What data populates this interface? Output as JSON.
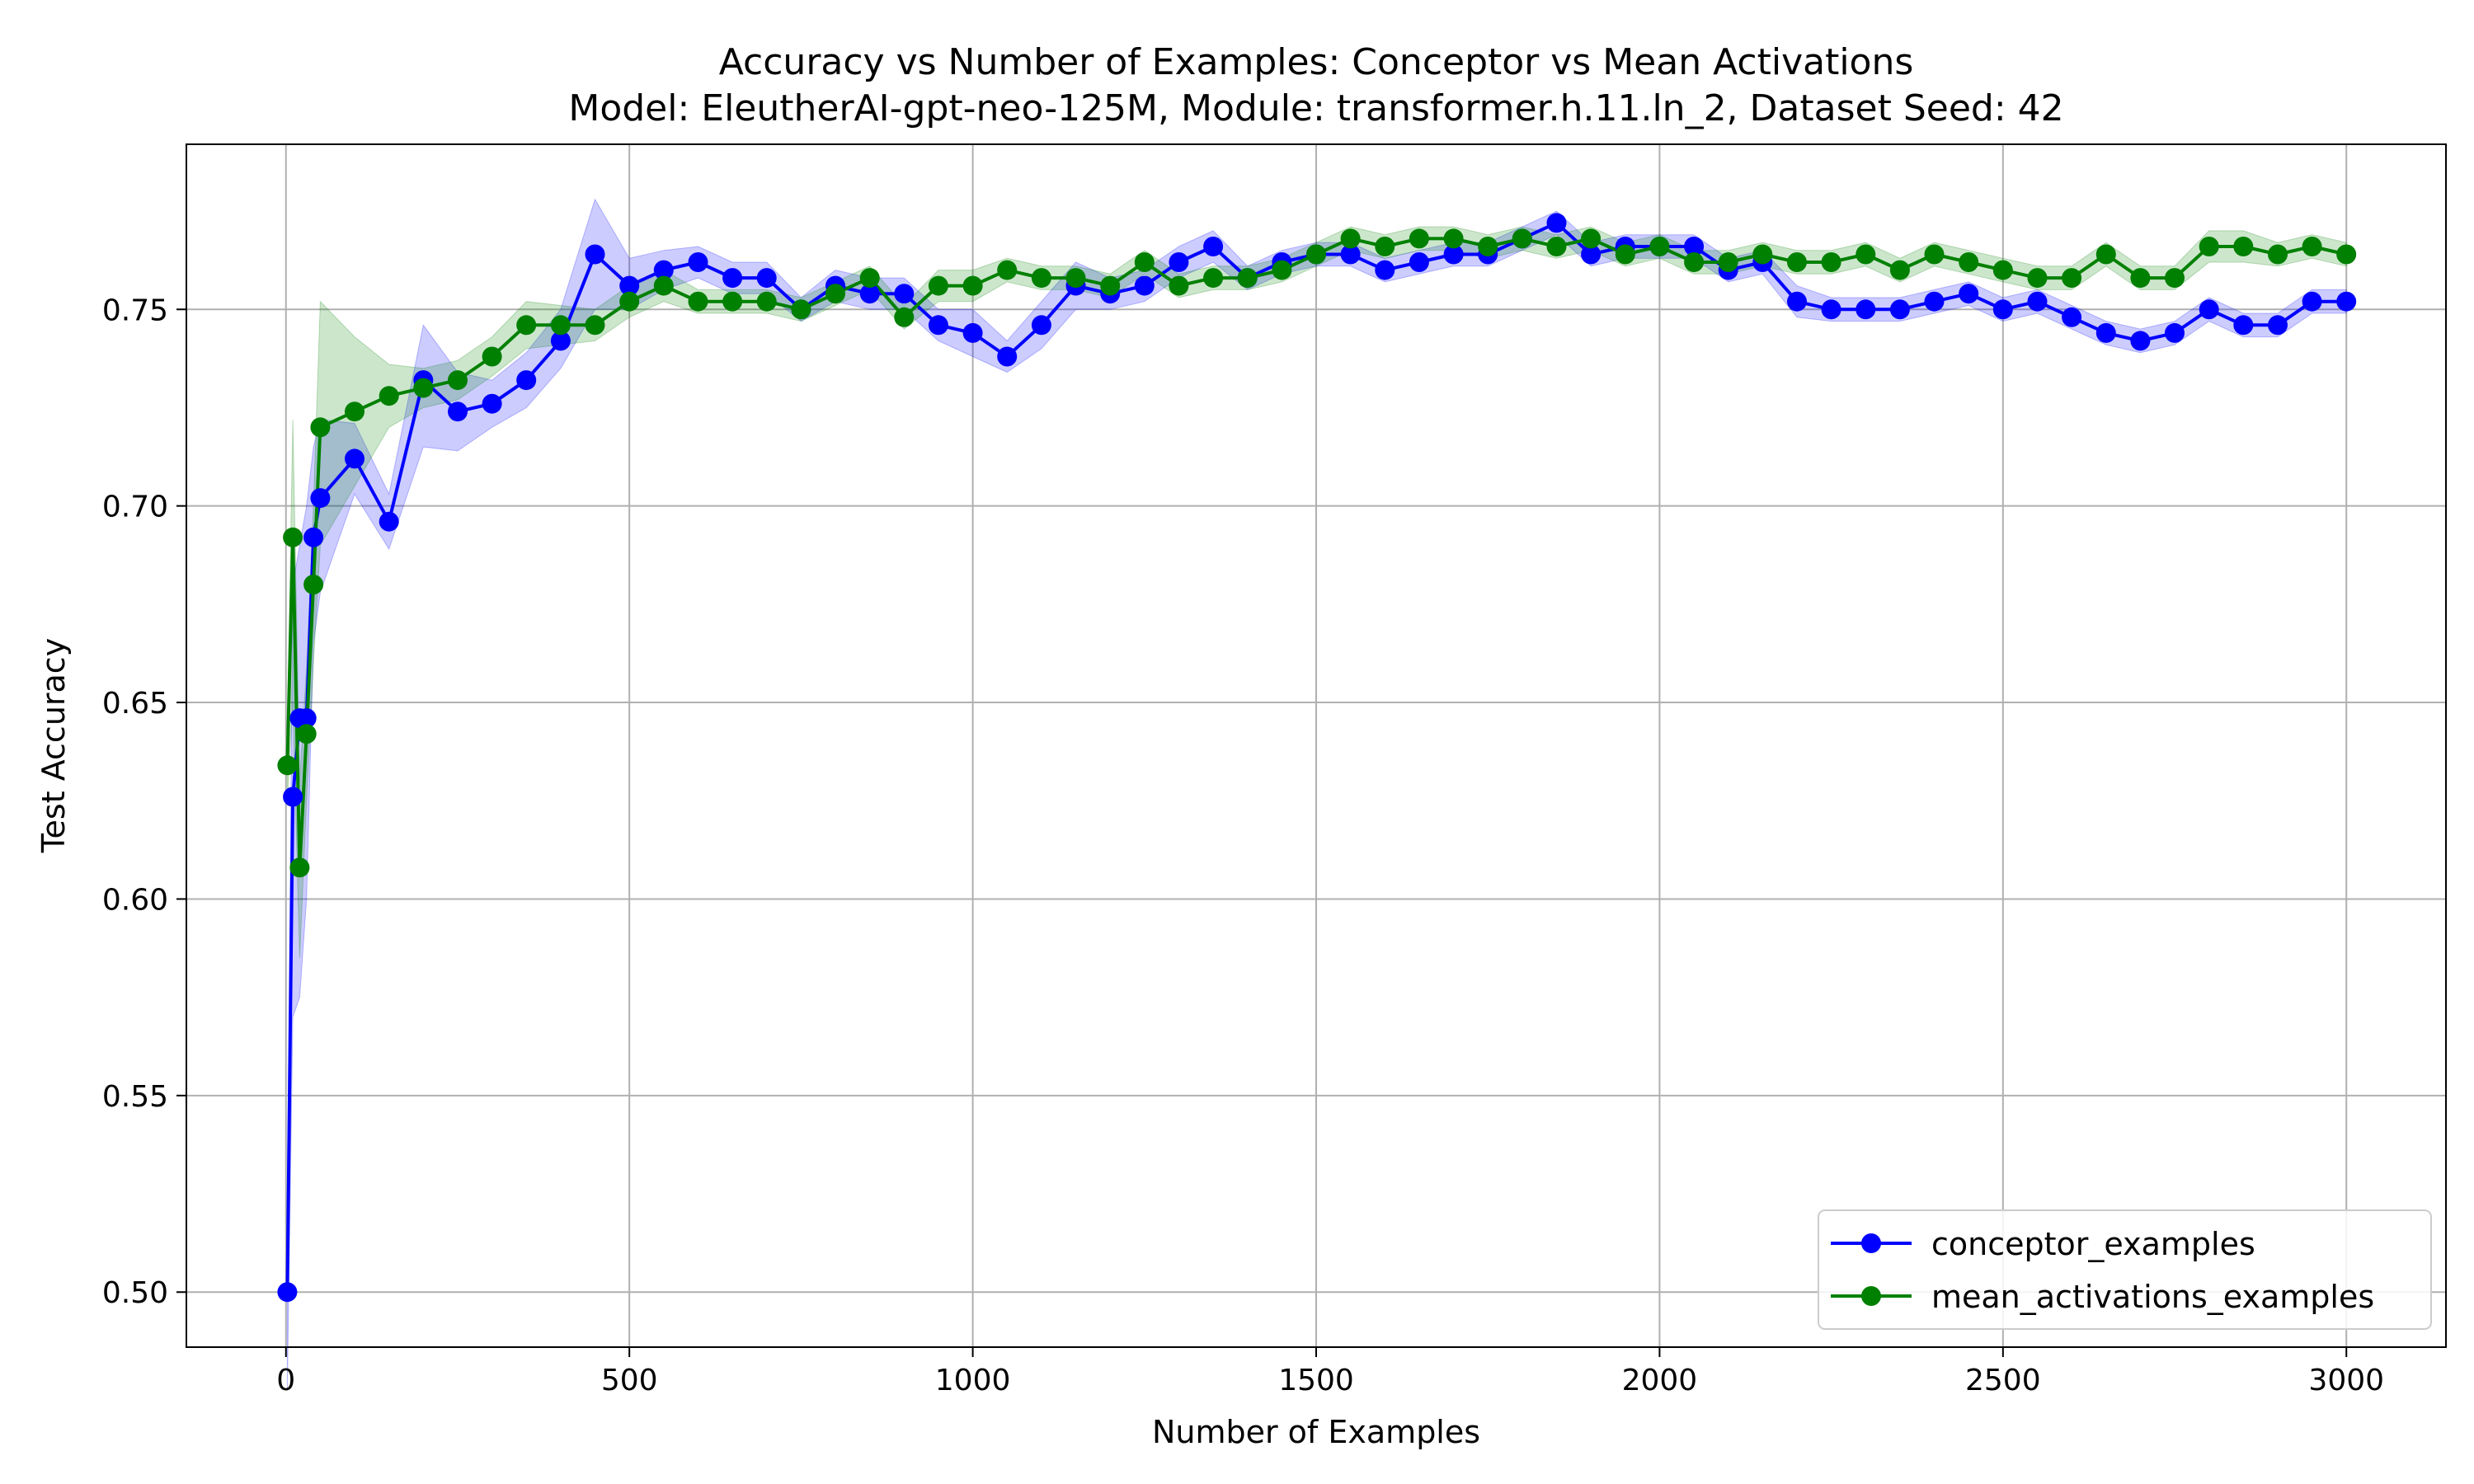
{
  "chart_data": {
    "type": "line",
    "title": "Accuracy vs Number of Examples: Conceptor vs Mean Activations",
    "subtitle": "Model: EleutherAI-gpt-neo-125M, Module: transformer.h.11.ln_2, Dataset Seed: 42",
    "xlabel": "Number of Examples",
    "ylabel": "Test Accuracy",
    "xlim": [
      -145,
      3145
    ],
    "ylim": [
      0.486,
      0.792
    ],
    "xticks": [
      0,
      500,
      1000,
      1500,
      2000,
      2500,
      3000
    ],
    "yticks": [
      0.5,
      0.55,
      0.6,
      0.65,
      0.7,
      0.75
    ],
    "xtick_labels": [
      "0",
      "500",
      "1000",
      "1500",
      "2000",
      "2500",
      "3000"
    ],
    "ytick_labels": [
      "0.50",
      "0.55",
      "0.60",
      "0.65",
      "0.70",
      "0.75"
    ],
    "grid": true,
    "legend_position": "lower-right",
    "series": [
      {
        "name": "conceptor_examples",
        "color": "#0000ff",
        "band_color": "#0000ff",
        "points": [
          [
            2,
            0.5,
            0.475,
            0.525
          ],
          [
            10,
            0.626,
            0.57,
            0.68
          ],
          [
            20,
            0.646,
            0.575,
            0.69
          ],
          [
            30,
            0.646,
            0.6,
            0.7
          ],
          [
            40,
            0.692,
            0.665,
            0.715
          ],
          [
            50,
            0.702,
            0.678,
            0.722
          ],
          [
            100,
            0.712,
            0.703,
            0.721
          ],
          [
            150,
            0.696,
            0.689,
            0.703
          ],
          [
            200,
            0.732,
            0.715,
            0.746
          ],
          [
            250,
            0.724,
            0.714,
            0.734
          ],
          [
            300,
            0.726,
            0.72,
            0.732
          ],
          [
            350,
            0.732,
            0.725,
            0.739
          ],
          [
            400,
            0.742,
            0.735,
            0.75
          ],
          [
            450,
            0.764,
            0.75,
            0.778
          ],
          [
            500,
            0.756,
            0.75,
            0.763
          ],
          [
            550,
            0.76,
            0.755,
            0.765
          ],
          [
            600,
            0.762,
            0.758,
            0.766
          ],
          [
            650,
            0.758,
            0.754,
            0.762
          ],
          [
            700,
            0.758,
            0.754,
            0.762
          ],
          [
            750,
            0.75,
            0.747,
            0.753
          ],
          [
            800,
            0.756,
            0.752,
            0.76
          ],
          [
            850,
            0.754,
            0.75,
            0.758
          ],
          [
            900,
            0.754,
            0.75,
            0.758
          ],
          [
            950,
            0.746,
            0.742,
            0.75
          ],
          [
            1000,
            0.744,
            0.738,
            0.75
          ],
          [
            1050,
            0.738,
            0.734,
            0.742
          ],
          [
            1100,
            0.746,
            0.74,
            0.752
          ],
          [
            1150,
            0.756,
            0.75,
            0.762
          ],
          [
            1200,
            0.754,
            0.75,
            0.758
          ],
          [
            1250,
            0.756,
            0.752,
            0.76
          ],
          [
            1300,
            0.762,
            0.758,
            0.766
          ],
          [
            1350,
            0.766,
            0.762,
            0.77
          ],
          [
            1400,
            0.758,
            0.755,
            0.761
          ],
          [
            1450,
            0.762,
            0.759,
            0.765
          ],
          [
            1500,
            0.764,
            0.761,
            0.767
          ],
          [
            1550,
            0.764,
            0.761,
            0.767
          ],
          [
            1600,
            0.76,
            0.757,
            0.763
          ],
          [
            1650,
            0.762,
            0.759,
            0.765
          ],
          [
            1700,
            0.764,
            0.761,
            0.767
          ],
          [
            1750,
            0.764,
            0.761,
            0.767
          ],
          [
            1800,
            0.768,
            0.765,
            0.771
          ],
          [
            1850,
            0.772,
            0.769,
            0.775
          ],
          [
            1900,
            0.764,
            0.761,
            0.767
          ],
          [
            1950,
            0.766,
            0.763,
            0.769
          ],
          [
            2000,
            0.766,
            0.763,
            0.769
          ],
          [
            2050,
            0.766,
            0.763,
            0.769
          ],
          [
            2100,
            0.76,
            0.757,
            0.763
          ],
          [
            2150,
            0.762,
            0.759,
            0.765
          ],
          [
            2200,
            0.752,
            0.748,
            0.756
          ],
          [
            2250,
            0.75,
            0.747,
            0.753
          ],
          [
            2300,
            0.75,
            0.747,
            0.753
          ],
          [
            2350,
            0.75,
            0.747,
            0.753
          ],
          [
            2400,
            0.752,
            0.749,
            0.755
          ],
          [
            2450,
            0.754,
            0.751,
            0.757
          ],
          [
            2500,
            0.75,
            0.747,
            0.753
          ],
          [
            2550,
            0.752,
            0.749,
            0.755
          ],
          [
            2600,
            0.748,
            0.745,
            0.751
          ],
          [
            2650,
            0.744,
            0.741,
            0.747
          ],
          [
            2700,
            0.742,
            0.739,
            0.745
          ],
          [
            2750,
            0.744,
            0.741,
            0.747
          ],
          [
            2800,
            0.75,
            0.747,
            0.753
          ],
          [
            2850,
            0.746,
            0.743,
            0.749
          ],
          [
            2900,
            0.746,
            0.743,
            0.749
          ],
          [
            2950,
            0.752,
            0.749,
            0.755
          ],
          [
            3000,
            0.752,
            0.749,
            0.755
          ]
        ]
      },
      {
        "name": "mean_activations_examples",
        "color": "#008000",
        "band_color": "#008000",
        "points": [
          [
            2,
            0.634,
            0.625,
            0.643
          ],
          [
            10,
            0.692,
            0.65,
            0.722
          ],
          [
            20,
            0.608,
            0.585,
            0.63
          ],
          [
            30,
            0.642,
            0.625,
            0.659
          ],
          [
            40,
            0.68,
            0.66,
            0.7
          ],
          [
            50,
            0.72,
            0.69,
            0.752
          ],
          [
            100,
            0.724,
            0.705,
            0.743
          ],
          [
            150,
            0.728,
            0.72,
            0.736
          ],
          [
            200,
            0.73,
            0.725,
            0.735
          ],
          [
            250,
            0.732,
            0.727,
            0.737
          ],
          [
            300,
            0.738,
            0.733,
            0.743
          ],
          [
            350,
            0.746,
            0.74,
            0.752
          ],
          [
            400,
            0.746,
            0.741,
            0.751
          ],
          [
            450,
            0.746,
            0.742,
            0.75
          ],
          [
            500,
            0.752,
            0.748,
            0.756
          ],
          [
            550,
            0.756,
            0.752,
            0.76
          ],
          [
            600,
            0.752,
            0.749,
            0.755
          ],
          [
            650,
            0.752,
            0.749,
            0.755
          ],
          [
            700,
            0.752,
            0.749,
            0.755
          ],
          [
            750,
            0.75,
            0.747,
            0.753
          ],
          [
            800,
            0.754,
            0.751,
            0.757
          ],
          [
            850,
            0.758,
            0.755,
            0.761
          ],
          [
            900,
            0.748,
            0.745,
            0.751
          ],
          [
            950,
            0.756,
            0.752,
            0.76
          ],
          [
            1000,
            0.756,
            0.752,
            0.76
          ],
          [
            1050,
            0.76,
            0.757,
            0.763
          ],
          [
            1100,
            0.758,
            0.755,
            0.761
          ],
          [
            1150,
            0.758,
            0.755,
            0.761
          ],
          [
            1200,
            0.756,
            0.753,
            0.759
          ],
          [
            1250,
            0.762,
            0.759,
            0.765
          ],
          [
            1300,
            0.756,
            0.753,
            0.759
          ],
          [
            1350,
            0.758,
            0.755,
            0.761
          ],
          [
            1400,
            0.758,
            0.755,
            0.761
          ],
          [
            1450,
            0.76,
            0.757,
            0.763
          ],
          [
            1500,
            0.764,
            0.761,
            0.767
          ],
          [
            1550,
            0.768,
            0.765,
            0.771
          ],
          [
            1600,
            0.766,
            0.763,
            0.769
          ],
          [
            1650,
            0.768,
            0.765,
            0.771
          ],
          [
            1700,
            0.768,
            0.765,
            0.771
          ],
          [
            1750,
            0.766,
            0.763,
            0.769
          ],
          [
            1800,
            0.768,
            0.765,
            0.771
          ],
          [
            1850,
            0.766,
            0.763,
            0.769
          ],
          [
            1900,
            0.768,
            0.765,
            0.771
          ],
          [
            1950,
            0.764,
            0.761,
            0.767
          ],
          [
            2000,
            0.766,
            0.763,
            0.769
          ],
          [
            2050,
            0.762,
            0.759,
            0.765
          ],
          [
            2100,
            0.762,
            0.759,
            0.765
          ],
          [
            2150,
            0.764,
            0.761,
            0.767
          ],
          [
            2200,
            0.762,
            0.759,
            0.765
          ],
          [
            2250,
            0.762,
            0.759,
            0.765
          ],
          [
            2300,
            0.764,
            0.761,
            0.767
          ],
          [
            2350,
            0.76,
            0.757,
            0.763
          ],
          [
            2400,
            0.764,
            0.761,
            0.767
          ],
          [
            2450,
            0.762,
            0.759,
            0.765
          ],
          [
            2500,
            0.76,
            0.757,
            0.763
          ],
          [
            2550,
            0.758,
            0.755,
            0.761
          ],
          [
            2600,
            0.758,
            0.755,
            0.761
          ],
          [
            2650,
            0.764,
            0.761,
            0.767
          ],
          [
            2700,
            0.758,
            0.755,
            0.761
          ],
          [
            2750,
            0.758,
            0.755,
            0.761
          ],
          [
            2800,
            0.766,
            0.762,
            0.77
          ],
          [
            2850,
            0.766,
            0.762,
            0.77
          ],
          [
            2900,
            0.764,
            0.761,
            0.767
          ],
          [
            2950,
            0.766,
            0.763,
            0.769
          ],
          [
            3000,
            0.764,
            0.761,
            0.767
          ]
        ]
      }
    ]
  }
}
